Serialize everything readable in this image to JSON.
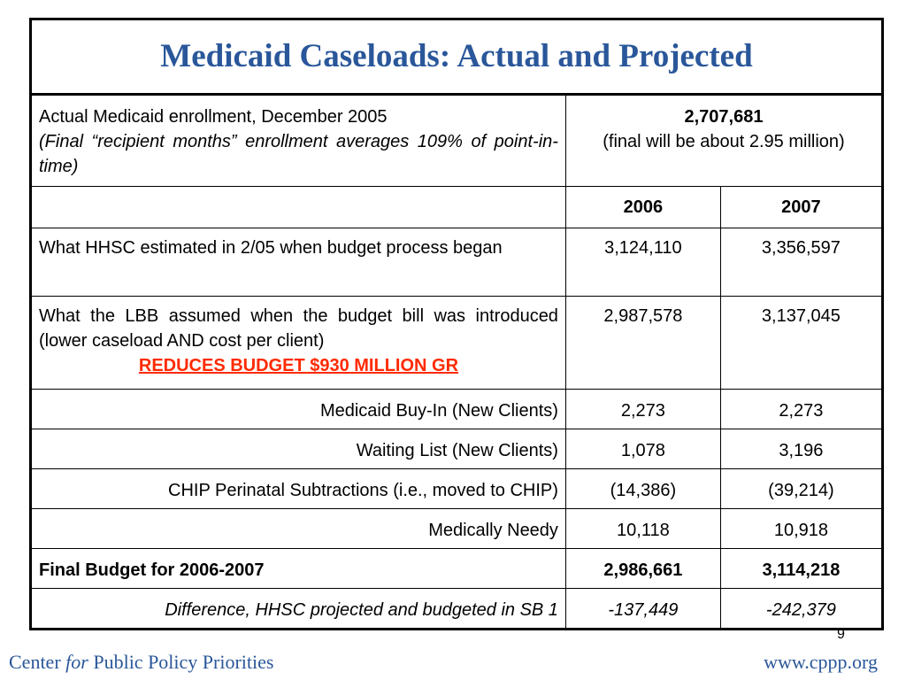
{
  "title": "Medicaid Caseloads: Actual and Projected",
  "actual_enrollment": {
    "label": "Actual Medicaid enrollment, December 2005",
    "note": "(Final “recipient months” enrollment averages 109% of point-in-time)",
    "value": "2,707,681",
    "value_note": "(final will be about 2.95 million)"
  },
  "years": [
    "2006",
    "2007"
  ],
  "rows": {
    "hhsc": {
      "label": "What HHSC estimated in 2/05 when budget process began",
      "v2006": "3,124,110",
      "v2007": "3,356,597"
    },
    "lbb": {
      "label": "What the LBB assumed when the budget bill was introduced (lower caseload AND cost per client)",
      "note": "REDUCES BUDGET $930 MILLION GR",
      "v2006": "2,987,578",
      "v2007": "3,137,045"
    },
    "buyin": {
      "label": "Medicaid Buy-In (New Clients)",
      "v2006": "2,273",
      "v2007": "2,273"
    },
    "waiting": {
      "label": "Waiting List (New Clients)",
      "v2006": "1,078",
      "v2007": "3,196"
    },
    "chip": {
      "label": "CHIP Perinatal Subtractions (i.e., moved to CHIP)",
      "v2006": "(14,386)",
      "v2007": "(39,214)"
    },
    "needy": {
      "label": "Medically Needy",
      "v2006": "10,118",
      "v2007": "10,918"
    },
    "final": {
      "label": "Final Budget for 2006-2007",
      "v2006": "2,986,661",
      "v2007": "3,114,218"
    },
    "difference": {
      "label": "Difference, HHSC projected and budgeted in SB 1",
      "v2006": "-137,449",
      "v2007": "-242,379"
    }
  },
  "slide_number": "9",
  "footer": {
    "org_prefix": "Center ",
    "org_for": "for",
    "org_suffix": " Public Policy Priorities",
    "url": "www.cppp.org"
  },
  "colors": {
    "title": "#2a579a",
    "highlight": "#ff2a00",
    "footer": "#2a579a"
  }
}
